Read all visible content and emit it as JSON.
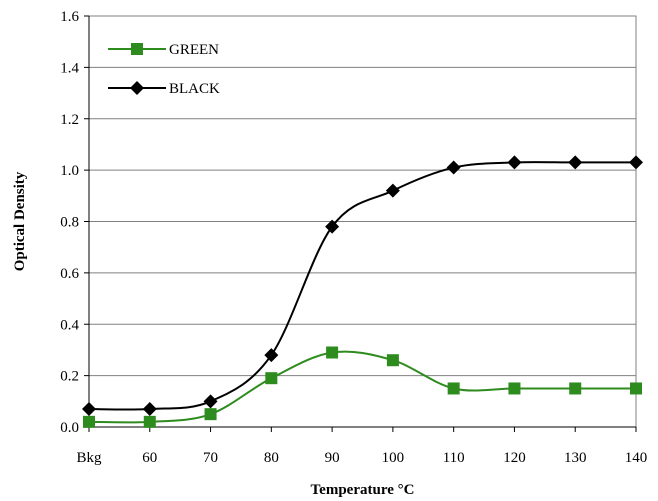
{
  "chart_data": {
    "type": "line",
    "title": "",
    "xlabel": "Temperature °C",
    "ylabel": "Optical Density",
    "categories": [
      "Bkg",
      "60",
      "70",
      "80",
      "90",
      "100",
      "110",
      "120",
      "130",
      "140"
    ],
    "ylim": [
      0,
      1.6
    ],
    "yticks": [
      "0.0",
      "0.2",
      "0.4",
      "0.6",
      "0.8",
      "1.0",
      "1.2",
      "1.4",
      "1.6"
    ],
    "grid": "horizontal",
    "legend_position": "top-left",
    "series": [
      {
        "name": "GREEN",
        "marker": "square",
        "color": "#2e8b1e",
        "values": [
          0.02,
          0.02,
          0.05,
          0.19,
          0.29,
          0.26,
          0.15,
          0.15,
          0.15,
          0.15
        ]
      },
      {
        "name": "BLACK",
        "marker": "diamond",
        "color": "#000000",
        "values": [
          0.07,
          0.07,
          0.1,
          0.28,
          0.78,
          0.92,
          1.01,
          1.03,
          1.03,
          1.03
        ]
      }
    ]
  }
}
